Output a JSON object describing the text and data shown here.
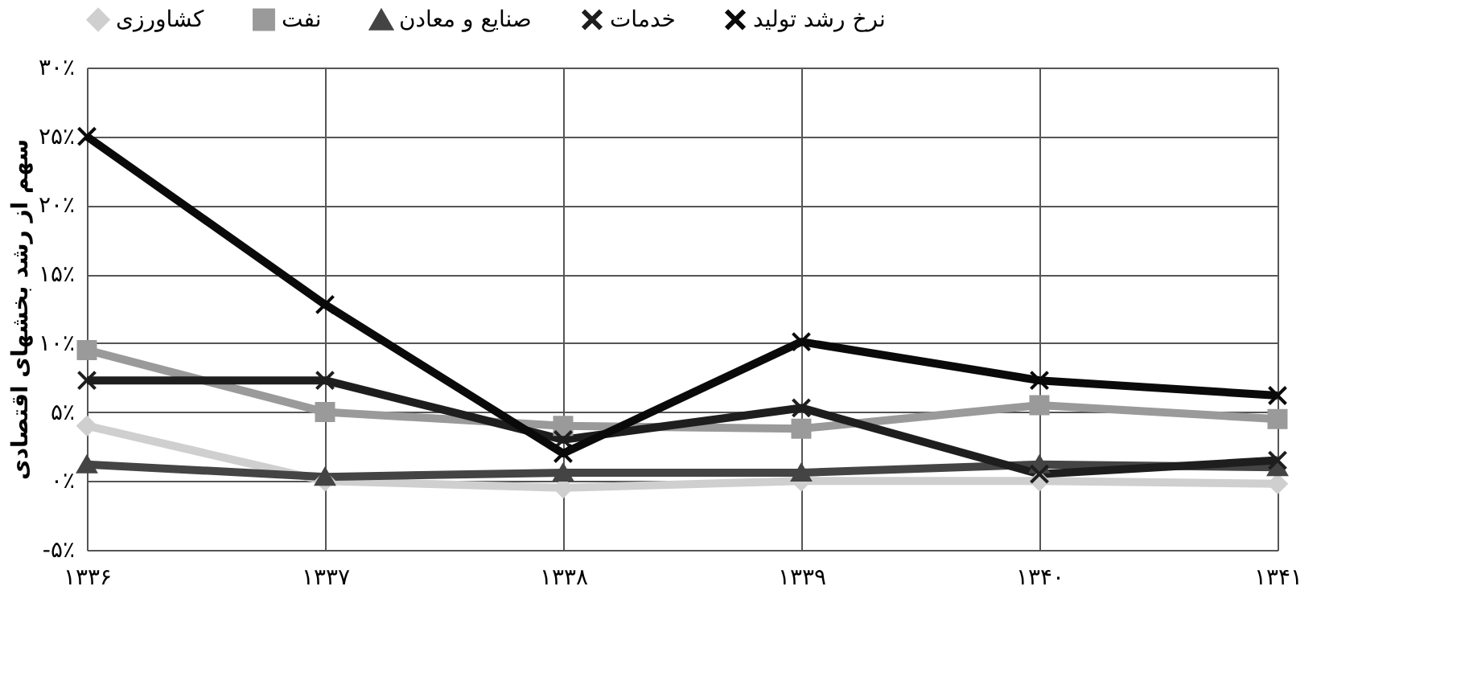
{
  "chart_data": {
    "type": "line",
    "ylabel": "سهم از رشد بخشهای اقتصادی",
    "categories": [
      "۱۳۳۶",
      "۱۳۳۷",
      "۱۳۳۸",
      "۱۳۳۹",
      "۱۳۴۰",
      "۱۳۴۱"
    ],
    "series": [
      {
        "name": "کشاورزی",
        "color": "#cfcfcf",
        "marker": "diamond",
        "values": [
          4,
          0,
          -0.5,
          0,
          0,
          -0.2
        ]
      },
      {
        "name": "نفت",
        "color": "#9a9a9a",
        "marker": "square",
        "values": [
          9.5,
          5,
          4,
          3.8,
          5.5,
          4.5
        ]
      },
      {
        "name": "صنایع و معادن",
        "color": "#444444",
        "marker": "triangle",
        "values": [
          1.2,
          0.3,
          0.6,
          0.6,
          1.2,
          1.0
        ]
      },
      {
        "name": "خدمات",
        "color": "#1e1e1e",
        "marker": "cross",
        "values": [
          7.3,
          7.3,
          3,
          5.3,
          0.5,
          1.5
        ]
      },
      {
        "name": "نرخ رشد تولید",
        "color": "#0a0a0a",
        "marker": "cross",
        "values": [
          25,
          12.8,
          2,
          10.1,
          7.3,
          6.2
        ]
      }
    ],
    "ylim": [
      -5,
      30
    ],
    "yticks": [
      {
        "value": -5,
        "label": "-۵٪"
      },
      {
        "value": 0,
        "label": "۰٪"
      },
      {
        "value": 5,
        "label": "۵٪"
      },
      {
        "value": 10,
        "label": "۱۰٪"
      },
      {
        "value": 15,
        "label": "۱۵٪"
      },
      {
        "value": 20,
        "label": "۲۰٪"
      },
      {
        "value": 25,
        "label": "۲۵٪"
      },
      {
        "value": 30,
        "label": "۳۰٪"
      }
    ],
    "grid": true,
    "legend": "top",
    "line_style": "solid"
  }
}
